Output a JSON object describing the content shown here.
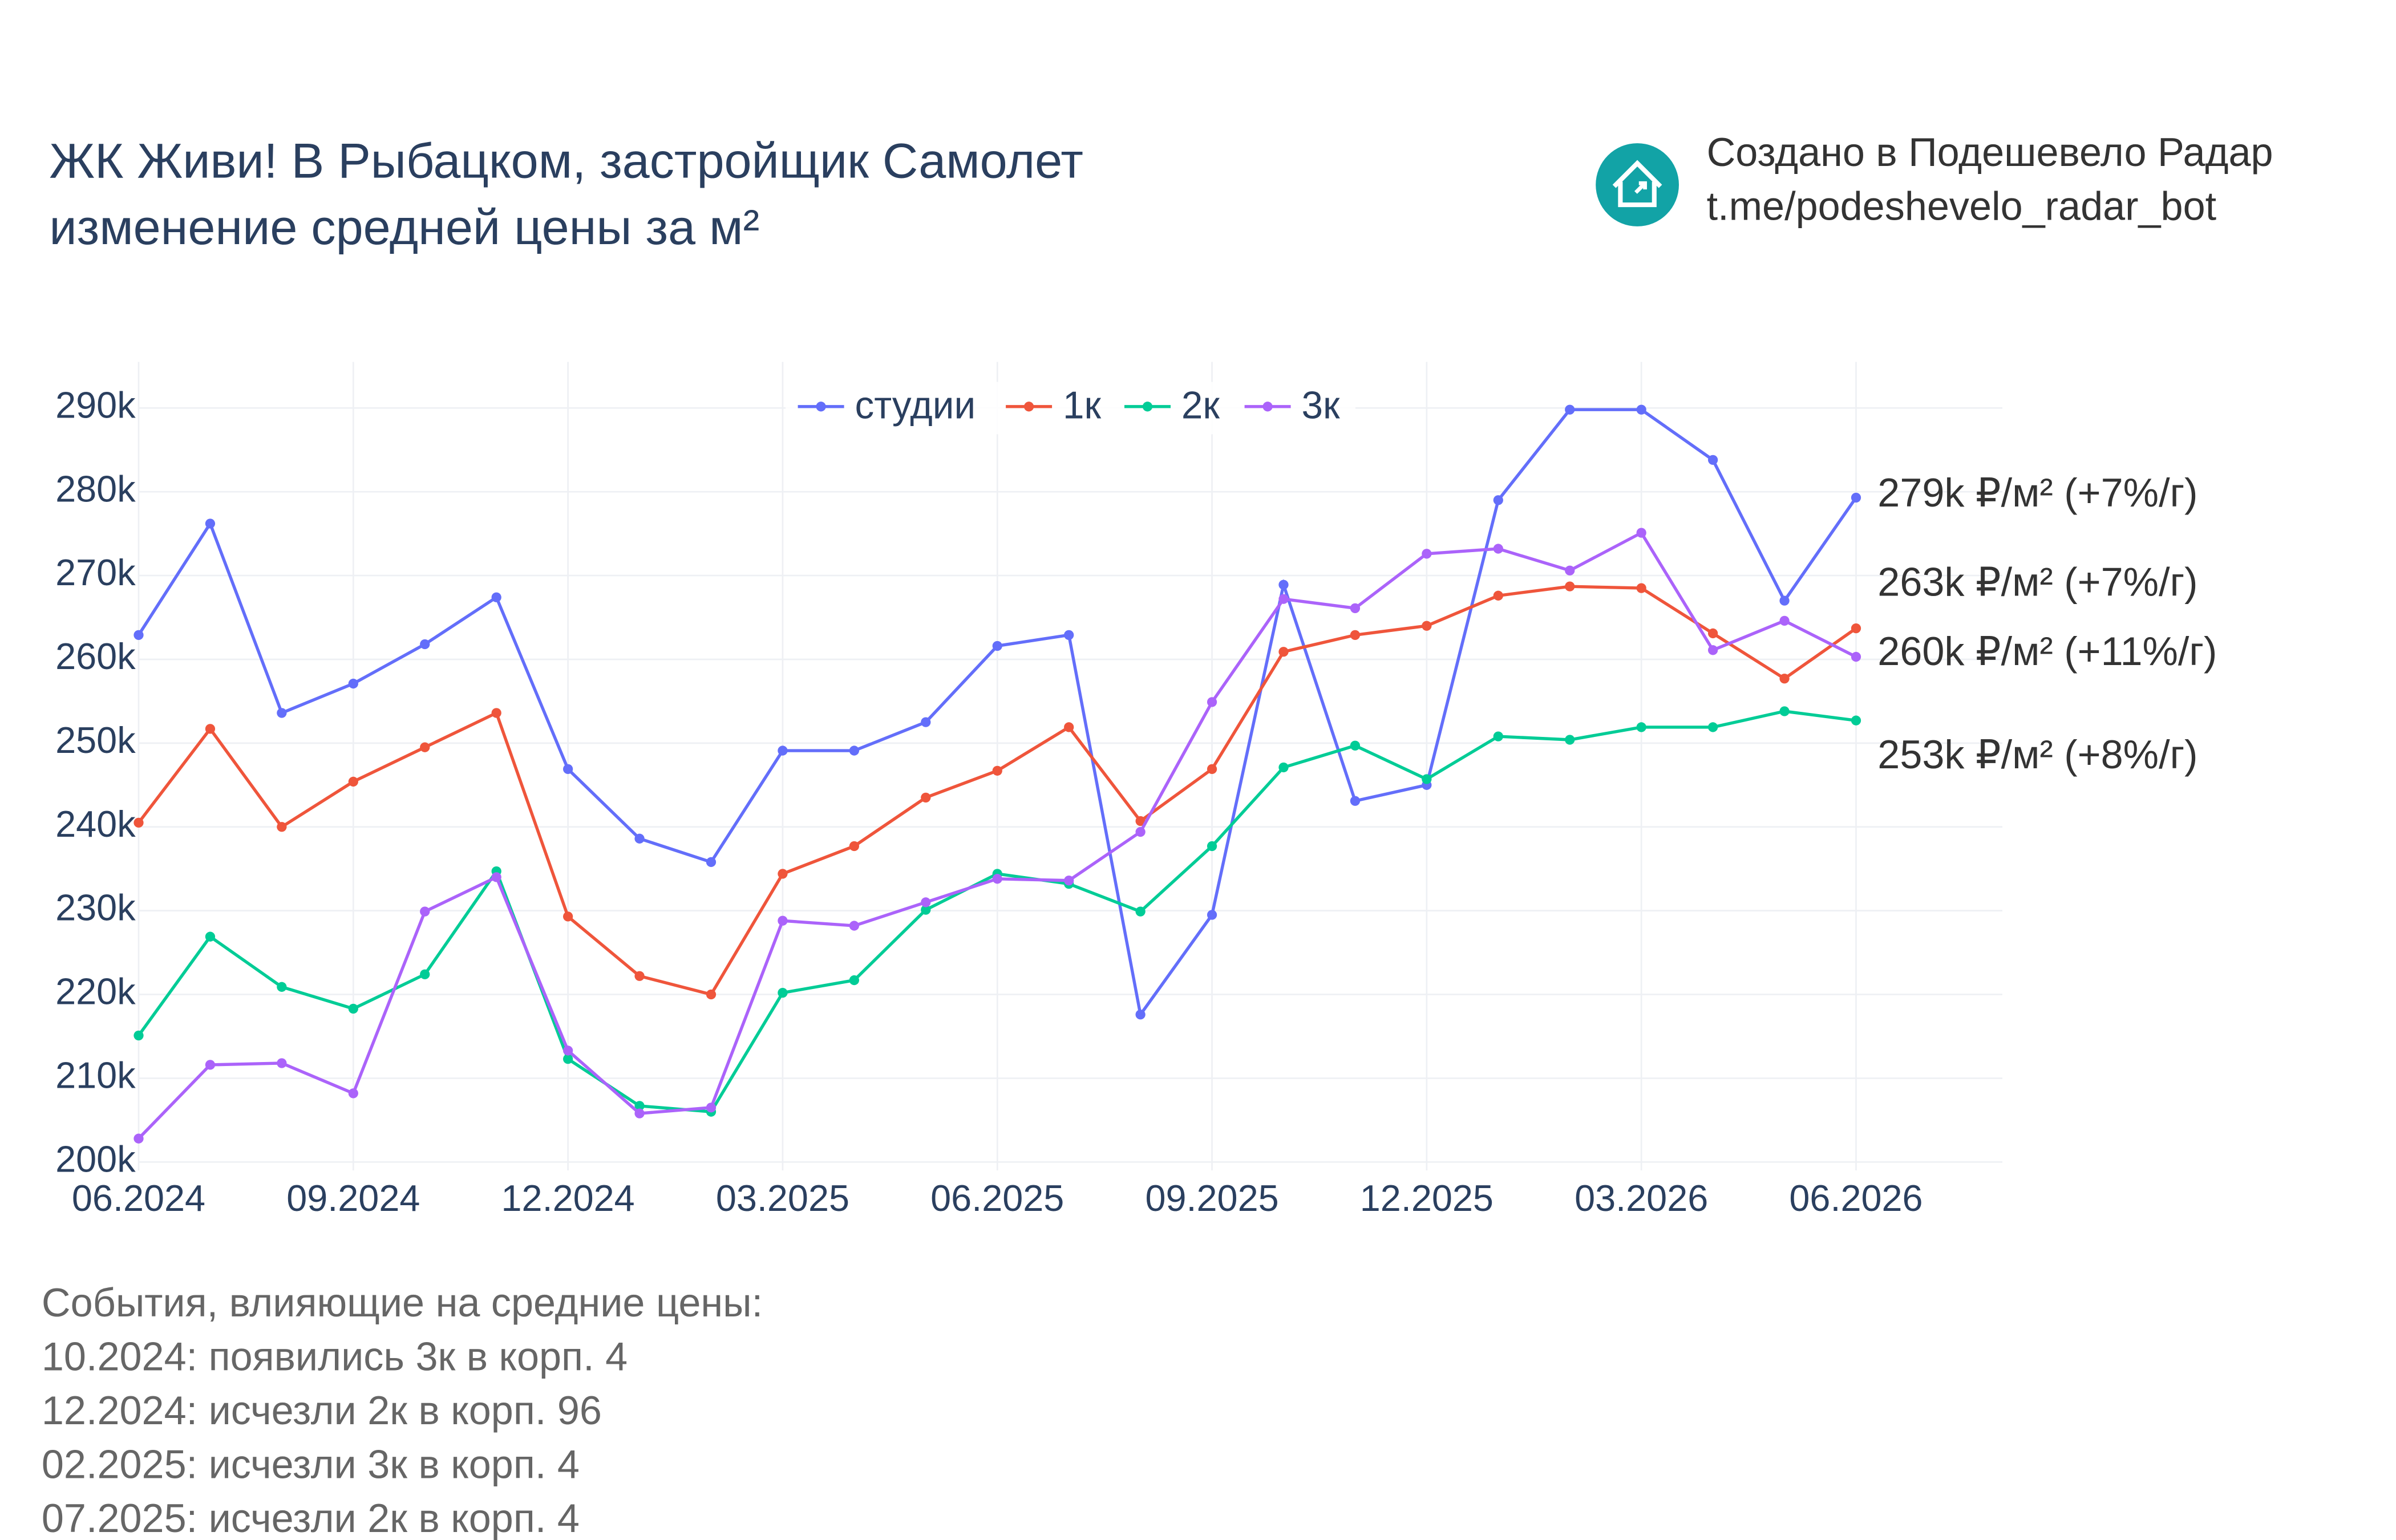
{
  "chart_data": {
    "type": "line",
    "title": [
      "ЖК Живи! В Рыбацком, застройщик Самолет",
      "изменение средней цены за м²"
    ],
    "credit": [
      "Создано в Подешевело Радар",
      "t.me/podeshevelo_radar_bot"
    ],
    "categories": [
      "06.2024",
      null,
      null,
      "09.2024",
      null,
      null,
      "12.2024",
      null,
      null,
      "03.2025",
      null,
      null,
      "06.2025",
      null,
      null,
      "09.2025",
      null,
      null,
      "12.2025",
      null,
      null,
      "03.2026",
      null,
      null,
      "06.2026"
    ],
    "series": [
      {
        "name": "студии",
        "color": "#636efa",
        "values": [
          262900,
          276200,
          253600,
          257100,
          261800,
          267400,
          246900,
          238600,
          235800,
          249100,
          249100,
          252500,
          261600,
          262900,
          217600,
          229500,
          268900,
          243100,
          245000,
          279000,
          289800,
          289800,
          283800,
          267000,
          279300
        ]
      },
      {
        "name": "1к",
        "color": "#ef553b",
        "values": [
          240500,
          251700,
          240000,
          245400,
          249500,
          253600,
          229300,
          222200,
          220000,
          234400,
          237700,
          243500,
          246700,
          251900,
          240700,
          246900,
          260900,
          262900,
          264000,
          267600,
          268700,
          268500,
          263100,
          257700,
          263700
        ]
      },
      {
        "name": "2к",
        "color": "#00cc96",
        "values": [
          215100,
          226900,
          220900,
          218300,
          222400,
          234700,
          212300,
          206700,
          206000,
          220200,
          221700,
          230100,
          234400,
          233200,
          229900,
          237700,
          247100,
          249700,
          245700,
          250800,
          250400,
          251900,
          251900,
          253800,
          252700
        ]
      },
      {
        "name": "3к",
        "color": "#ab63fa",
        "values": [
          202800,
          211600,
          211800,
          208200,
          229900,
          234000,
          213300,
          205800,
          206500,
          228800,
          228200,
          231000,
          233800,
          233600,
          239400,
          254900,
          267200,
          266100,
          272600,
          273200,
          270600,
          275100,
          261100,
          264600,
          260300
        ]
      }
    ],
    "ylim": [
      199000,
      295500
    ],
    "yticks": [
      {
        "value": 200000,
        "label": "200k"
      },
      {
        "value": 210000,
        "label": "210k"
      },
      {
        "value": 220000,
        "label": "220k"
      },
      {
        "value": 230000,
        "label": "230k"
      },
      {
        "value": 240000,
        "label": "240k"
      },
      {
        "value": 250000,
        "label": "250k"
      },
      {
        "value": 260000,
        "label": "260k"
      },
      {
        "value": 270000,
        "label": "270k"
      },
      {
        "value": 280000,
        "label": "280k"
      },
      {
        "value": 290000,
        "label": "290k"
      }
    ],
    "grid": true,
    "annotations": [
      "279k ₽/м² (+7%/г)",
      "263k ₽/м² (+7%/г)",
      "260k ₽/м² (+11%/г)",
      "253k ₽/м² (+8%/г)"
    ],
    "events_title": "События, влияющие на средние цены:",
    "events": [
      "10.2024: появились 3к в корп. 4",
      "12.2024: исчезли 2к в корп. 96",
      "02.2025: исчезли 3к в корп. 4",
      "07.2025: исчезли 2к в корп. 4"
    ]
  }
}
